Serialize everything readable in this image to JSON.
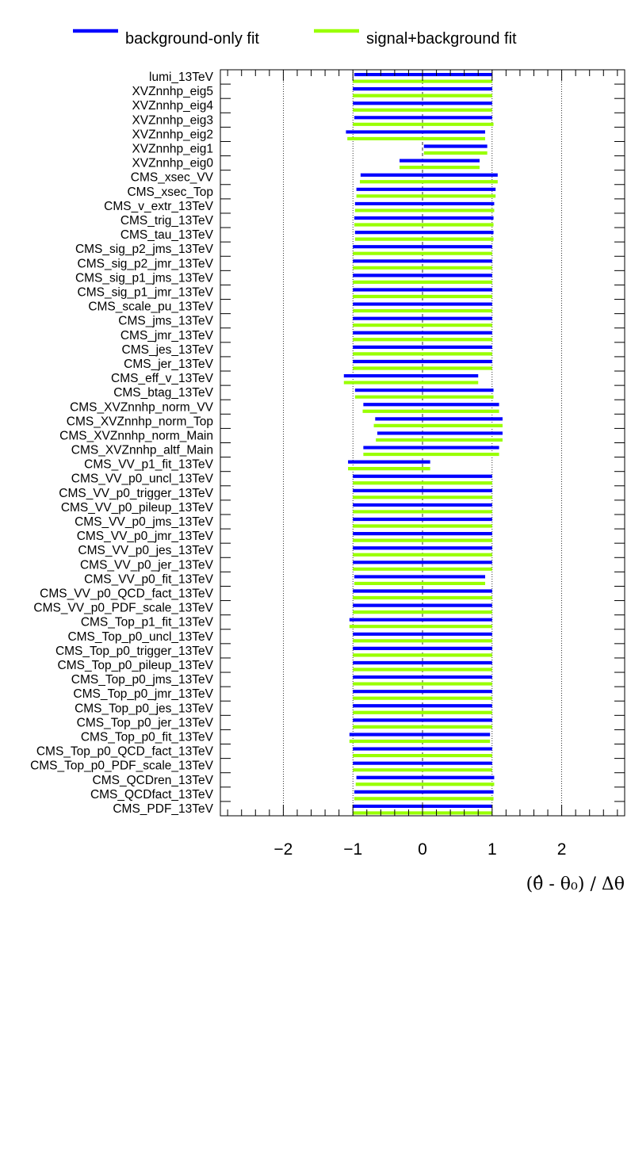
{
  "chart_data": {
    "type": "bar",
    "xlabel": "(θ̂ - θ₀) / Δθ",
    "xlim": [
      -2.9,
      2.9
    ],
    "x_ticks": [
      "−2",
      "−1",
      "0",
      "1",
      "2"
    ],
    "x_tick_values": [
      -2,
      -1,
      0,
      1,
      2
    ],
    "grid": "vertical dotted lines at ±1, ±2; dashed line at 0",
    "legend_placement": "top",
    "colors": {
      "background_only": "#0000ff",
      "signal_plus_background": "#99ff00"
    },
    "series": [
      {
        "name": "background-only fit",
        "color": "#0000ff"
      },
      {
        "name": "signal+background fit",
        "color": "#99ff00"
      }
    ],
    "categories": [
      "lumi_13TeV",
      "XVZnnhp_eig5",
      "XVZnnhp_eig4",
      "XVZnnhp_eig3",
      "XVZnnhp_eig2",
      "XVZnnhp_eig1",
      "XVZnnhp_eig0",
      "CMS_xsec_VV",
      "CMS_xsec_Top",
      "CMS_v_extr_13TeV",
      "CMS_trig_13TeV",
      "CMS_tau_13TeV",
      "CMS_sig_p2_jms_13TeV",
      "CMS_sig_p2_jmr_13TeV",
      "CMS_sig_p1_jms_13TeV",
      "CMS_sig_p1_jmr_13TeV",
      "CMS_scale_pu_13TeV",
      "CMS_jms_13TeV",
      "CMS_jmr_13TeV",
      "CMS_jes_13TeV",
      "CMS_jer_13TeV",
      "CMS_eff_v_13TeV",
      "CMS_btag_13TeV",
      "CMS_XVZnnhp_norm_VV",
      "CMS_XVZnnhp_norm_Top",
      "CMS_XVZnnhp_norm_Main",
      "CMS_XVZnnhp_altf_Main",
      "CMS_VV_p1_fit_13TeV",
      "CMS_VV_p0_uncl_13TeV",
      "CMS_VV_p0_trigger_13TeV",
      "CMS_VV_p0_pileup_13TeV",
      "CMS_VV_p0_jms_13TeV",
      "CMS_VV_p0_jmr_13TeV",
      "CMS_VV_p0_jes_13TeV",
      "CMS_VV_p0_jer_13TeV",
      "CMS_VV_p0_fit_13TeV",
      "CMS_VV_p0_QCD_fact_13TeV",
      "CMS_VV_p0_PDF_scale_13TeV",
      "CMS_Top_p1_fit_13TeV",
      "CMS_Top_p0_uncl_13TeV",
      "CMS_Top_p0_trigger_13TeV",
      "CMS_Top_p0_pileup_13TeV",
      "CMS_Top_p0_jms_13TeV",
      "CMS_Top_p0_jmr_13TeV",
      "CMS_Top_p0_jes_13TeV",
      "CMS_Top_p0_jer_13TeV",
      "CMS_Top_p0_fit_13TeV",
      "CMS_Top_p0_QCD_fact_13TeV",
      "CMS_Top_p0_PDF_scale_13TeV",
      "CMS_QCDren_13TeV",
      "CMS_QCDfact_13TeV",
      "CMS_PDF_13TeV"
    ],
    "bkg_ranges": [
      [
        -0.98,
        1.0
      ],
      [
        -1.0,
        1.0
      ],
      [
        -1.0,
        1.0
      ],
      [
        -0.98,
        1.0
      ],
      [
        -1.1,
        0.9
      ],
      [
        0.02,
        0.93
      ],
      [
        -0.33,
        0.82
      ],
      [
        -0.89,
        1.08
      ],
      [
        -0.95,
        1.05
      ],
      [
        -0.97,
        1.03
      ],
      [
        -0.98,
        1.02
      ],
      [
        -0.97,
        1.02
      ],
      [
        -1.0,
        1.0
      ],
      [
        -1.0,
        1.0
      ],
      [
        -1.0,
        1.0
      ],
      [
        -1.0,
        1.0
      ],
      [
        -1.0,
        1.0
      ],
      [
        -1.0,
        1.0
      ],
      [
        -1.0,
        1.0
      ],
      [
        -1.0,
        1.0
      ],
      [
        -1.0,
        1.0
      ],
      [
        -1.13,
        0.8
      ],
      [
        -0.97,
        1.02
      ],
      [
        -0.85,
        1.1
      ],
      [
        -0.68,
        1.15
      ],
      [
        -0.65,
        1.15
      ],
      [
        -0.85,
        1.1
      ],
      [
        -1.07,
        0.11
      ],
      [
        -1.0,
        1.0
      ],
      [
        -1.0,
        1.0
      ],
      [
        -1.0,
        1.0
      ],
      [
        -1.0,
        1.0
      ],
      [
        -1.0,
        1.0
      ],
      [
        -1.0,
        1.0
      ],
      [
        -1.0,
        1.0
      ],
      [
        -0.98,
        0.9
      ],
      [
        -1.0,
        1.0
      ],
      [
        -1.0,
        1.0
      ],
      [
        -1.05,
        1.0
      ],
      [
        -1.0,
        1.0
      ],
      [
        -1.0,
        1.0
      ],
      [
        -1.0,
        1.0
      ],
      [
        -1.0,
        1.0
      ],
      [
        -1.0,
        1.0
      ],
      [
        -1.0,
        1.0
      ],
      [
        -1.0,
        1.0
      ],
      [
        -1.05,
        0.97
      ],
      [
        -1.0,
        1.0
      ],
      [
        -1.0,
        1.0
      ],
      [
        -0.95,
        1.03
      ],
      [
        -0.98,
        1.02
      ],
      [
        -1.0,
        1.0
      ]
    ],
    "sb_ranges": [
      [
        -1.0,
        1.0
      ],
      [
        -1.0,
        1.0
      ],
      [
        -1.0,
        1.0
      ],
      [
        -1.0,
        1.02
      ],
      [
        -1.08,
        0.9
      ],
      [
        0.02,
        0.93
      ],
      [
        -0.33,
        0.82
      ],
      [
        -0.9,
        1.08
      ],
      [
        -0.95,
        1.05
      ],
      [
        -0.97,
        1.03
      ],
      [
        -0.98,
        1.02
      ],
      [
        -0.97,
        1.02
      ],
      [
        -1.0,
        1.0
      ],
      [
        -1.0,
        1.0
      ],
      [
        -1.0,
        1.0
      ],
      [
        -1.0,
        1.0
      ],
      [
        -1.0,
        1.0
      ],
      [
        -1.0,
        1.0
      ],
      [
        -1.0,
        1.0
      ],
      [
        -1.0,
        1.0
      ],
      [
        -1.0,
        1.0
      ],
      [
        -1.13,
        0.8
      ],
      [
        -0.97,
        1.02
      ],
      [
        -0.86,
        1.1
      ],
      [
        -0.7,
        1.15
      ],
      [
        -0.67,
        1.15
      ],
      [
        -0.85,
        1.1
      ],
      [
        -1.07,
        0.11
      ],
      [
        -1.0,
        1.0
      ],
      [
        -1.0,
        1.0
      ],
      [
        -1.0,
        1.0
      ],
      [
        -1.0,
        1.0
      ],
      [
        -1.0,
        1.0
      ],
      [
        -1.0,
        1.0
      ],
      [
        -1.0,
        1.0
      ],
      [
        -0.98,
        0.9
      ],
      [
        -1.0,
        1.0
      ],
      [
        -1.0,
        1.0
      ],
      [
        -1.05,
        1.0
      ],
      [
        -1.0,
        1.0
      ],
      [
        -1.0,
        1.0
      ],
      [
        -1.0,
        1.0
      ],
      [
        -1.0,
        1.0
      ],
      [
        -1.0,
        1.0
      ],
      [
        -1.0,
        1.0
      ],
      [
        -1.0,
        1.0
      ],
      [
        -1.05,
        0.97
      ],
      [
        -1.0,
        1.0
      ],
      [
        -1.0,
        1.0
      ],
      [
        -0.96,
        1.03
      ],
      [
        -0.98,
        1.02
      ],
      [
        -1.0,
        1.0
      ]
    ]
  }
}
